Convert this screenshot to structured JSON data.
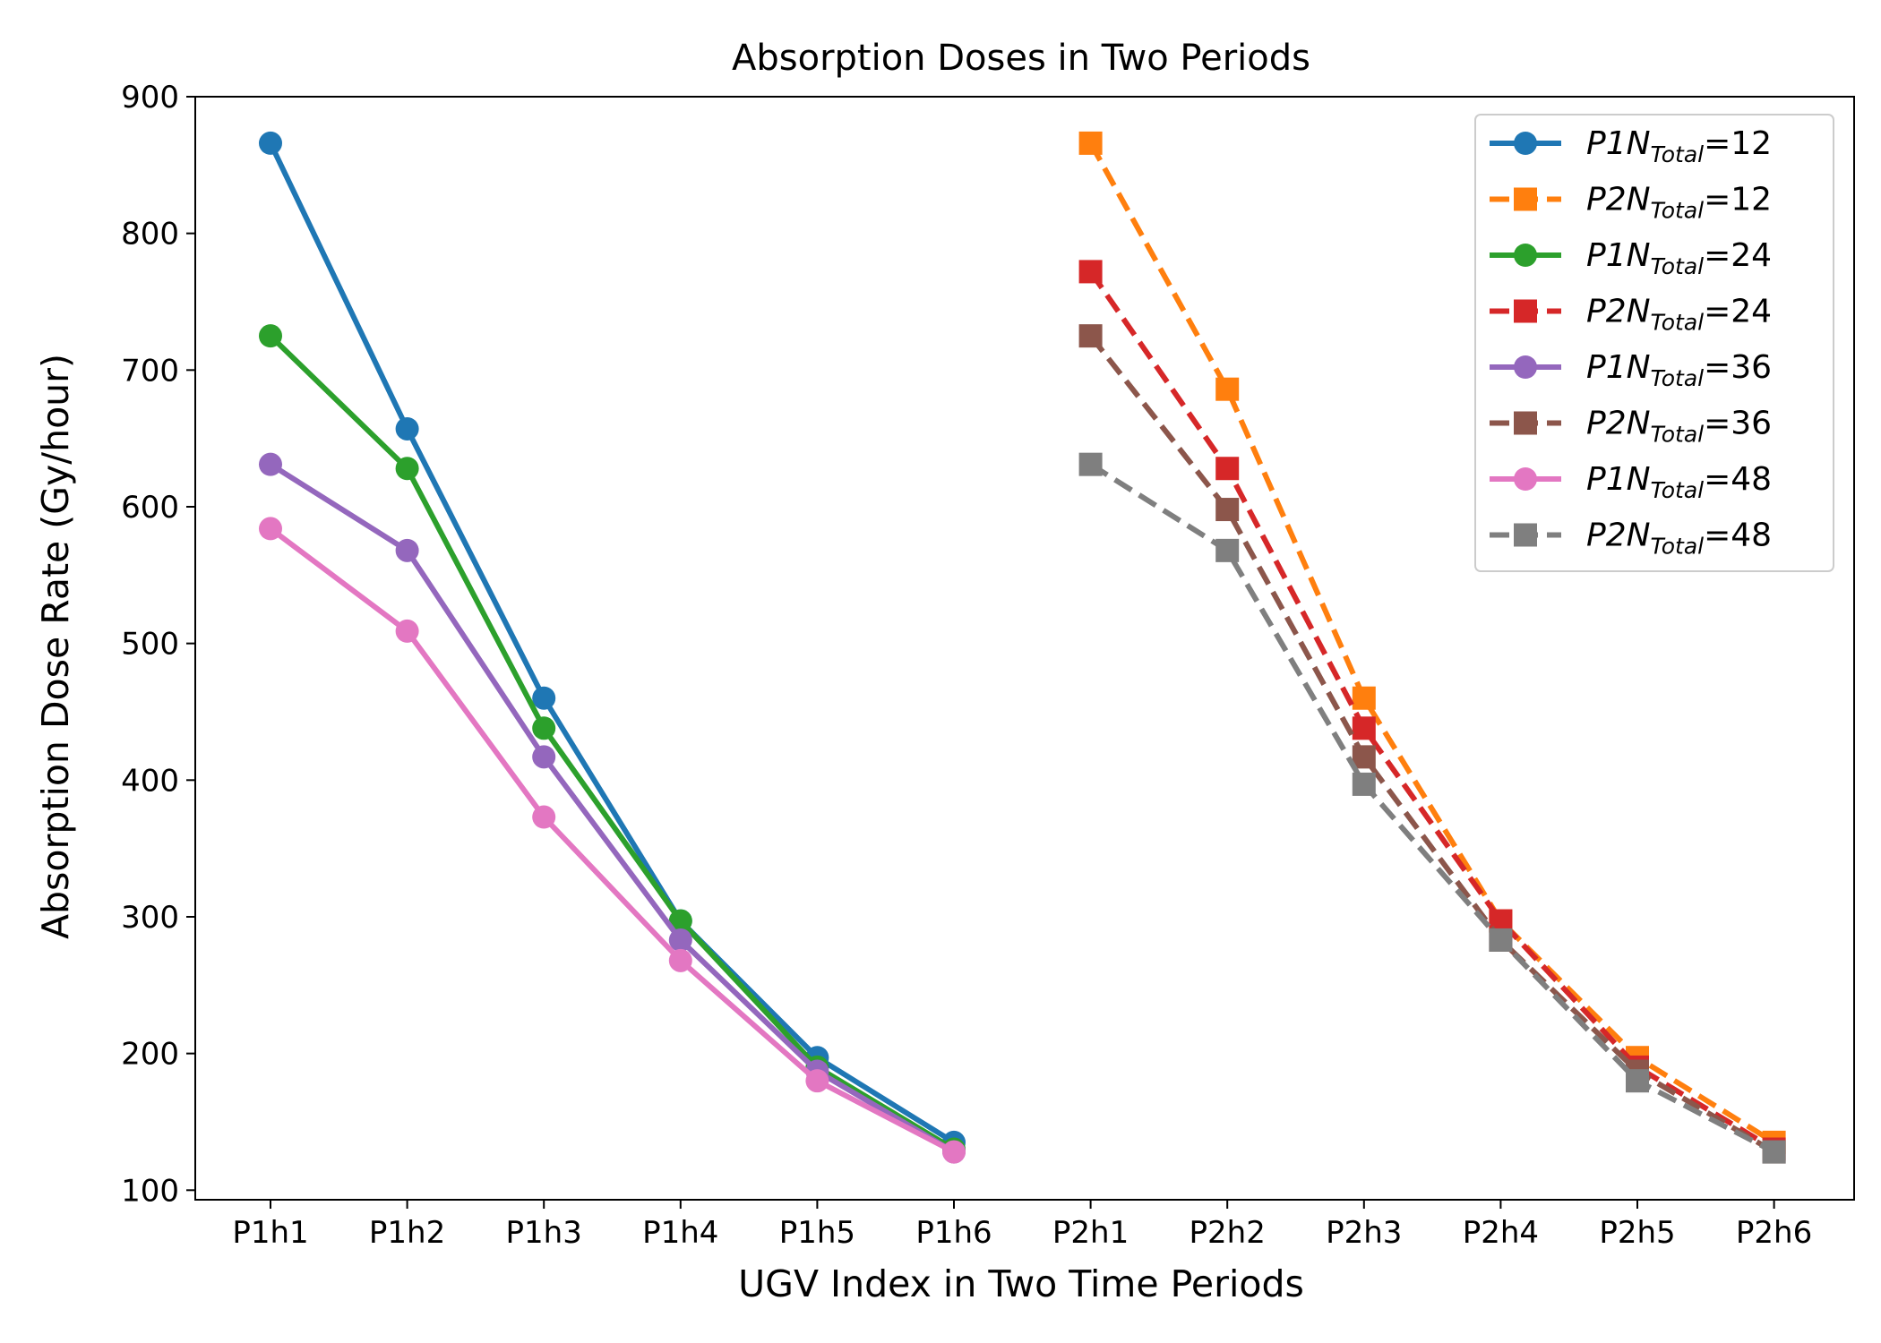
{
  "chart_data": {
    "type": "line",
    "title": "Absorption Doses in Two Periods",
    "xlabel": "UGV Index in Two Time Periods",
    "ylabel": "Absorption Dose Rate (Gy/hour)",
    "categories": [
      "P1h1",
      "P1h2",
      "P1h3",
      "P1h4",
      "P1h5",
      "P1h6",
      "P2h1",
      "P2h2",
      "P2h3",
      "P2h4",
      "P2h5",
      "P2h6"
    ],
    "ylim": [
      93,
      900
    ],
    "yticks": [
      100,
      200,
      300,
      400,
      500,
      600,
      700,
      800,
      900
    ],
    "grid": false,
    "legend_position": "top-right",
    "series": [
      {
        "name": "P1N_{Total}=12",
        "label_parts": {
          "prefix": "P1N",
          "sub": "Total",
          "suffix": "=12"
        },
        "color": "#1f77b4",
        "marker": "circle",
        "dash": "solid",
        "values": [
          866,
          657,
          460,
          297,
          197,
          135,
          null,
          null,
          null,
          null,
          null,
          null
        ]
      },
      {
        "name": "P2N_{Total}=12",
        "label_parts": {
          "prefix": "P2N",
          "sub": "Total",
          "suffix": "=12"
        },
        "color": "#ff7f0e",
        "marker": "square",
        "dash": "dashed",
        "values": [
          null,
          null,
          null,
          null,
          null,
          null,
          866,
          686,
          460,
          297,
          197,
          135
        ]
      },
      {
        "name": "P1N_{Total}=24",
        "label_parts": {
          "prefix": "P1N",
          "sub": "Total",
          "suffix": "=24"
        },
        "color": "#2ca02c",
        "marker": "circle",
        "dash": "solid",
        "values": [
          725,
          628,
          438,
          297,
          190,
          130,
          null,
          null,
          null,
          null,
          null,
          null
        ]
      },
      {
        "name": "P2N_{Total}=24",
        "label_parts": {
          "prefix": "P2N",
          "sub": "Total",
          "suffix": "=24"
        },
        "color": "#d62728",
        "marker": "square",
        "dash": "dashed",
        "values": [
          null,
          null,
          null,
          null,
          null,
          null,
          772,
          628,
          438,
          297,
          190,
          130
        ]
      },
      {
        "name": "P1N_{Total}=36",
        "label_parts": {
          "prefix": "P1N",
          "sub": "Total",
          "suffix": "=36"
        },
        "color": "#9467bd",
        "marker": "circle",
        "dash": "solid",
        "values": [
          631,
          568,
          417,
          283,
          187,
          128,
          null,
          null,
          null,
          null,
          null,
          null
        ]
      },
      {
        "name": "P2N_{Total}=36",
        "label_parts": {
          "prefix": "P2N",
          "sub": "Total",
          "suffix": "=36"
        },
        "color": "#8c564b",
        "marker": "square",
        "dash": "dashed",
        "values": [
          null,
          null,
          null,
          null,
          null,
          null,
          725,
          598,
          417,
          283,
          187,
          128
        ]
      },
      {
        "name": "P1N_{Total}=48",
        "label_parts": {
          "prefix": "P1N",
          "sub": "Total",
          "suffix": "=48"
        },
        "color": "#e377c2",
        "marker": "circle",
        "dash": "solid",
        "values": [
          584,
          509,
          373,
          268,
          180,
          128,
          null,
          null,
          null,
          null,
          null,
          null
        ]
      },
      {
        "name": "P2N_{Total}=48",
        "label_parts": {
          "prefix": "P2N",
          "sub": "Total",
          "suffix": "=48"
        },
        "color": "#7f7f7f",
        "marker": "square",
        "dash": "dashed",
        "values": [
          null,
          null,
          null,
          null,
          null,
          null,
          631,
          568,
          397,
          283,
          180,
          128
        ]
      }
    ]
  }
}
